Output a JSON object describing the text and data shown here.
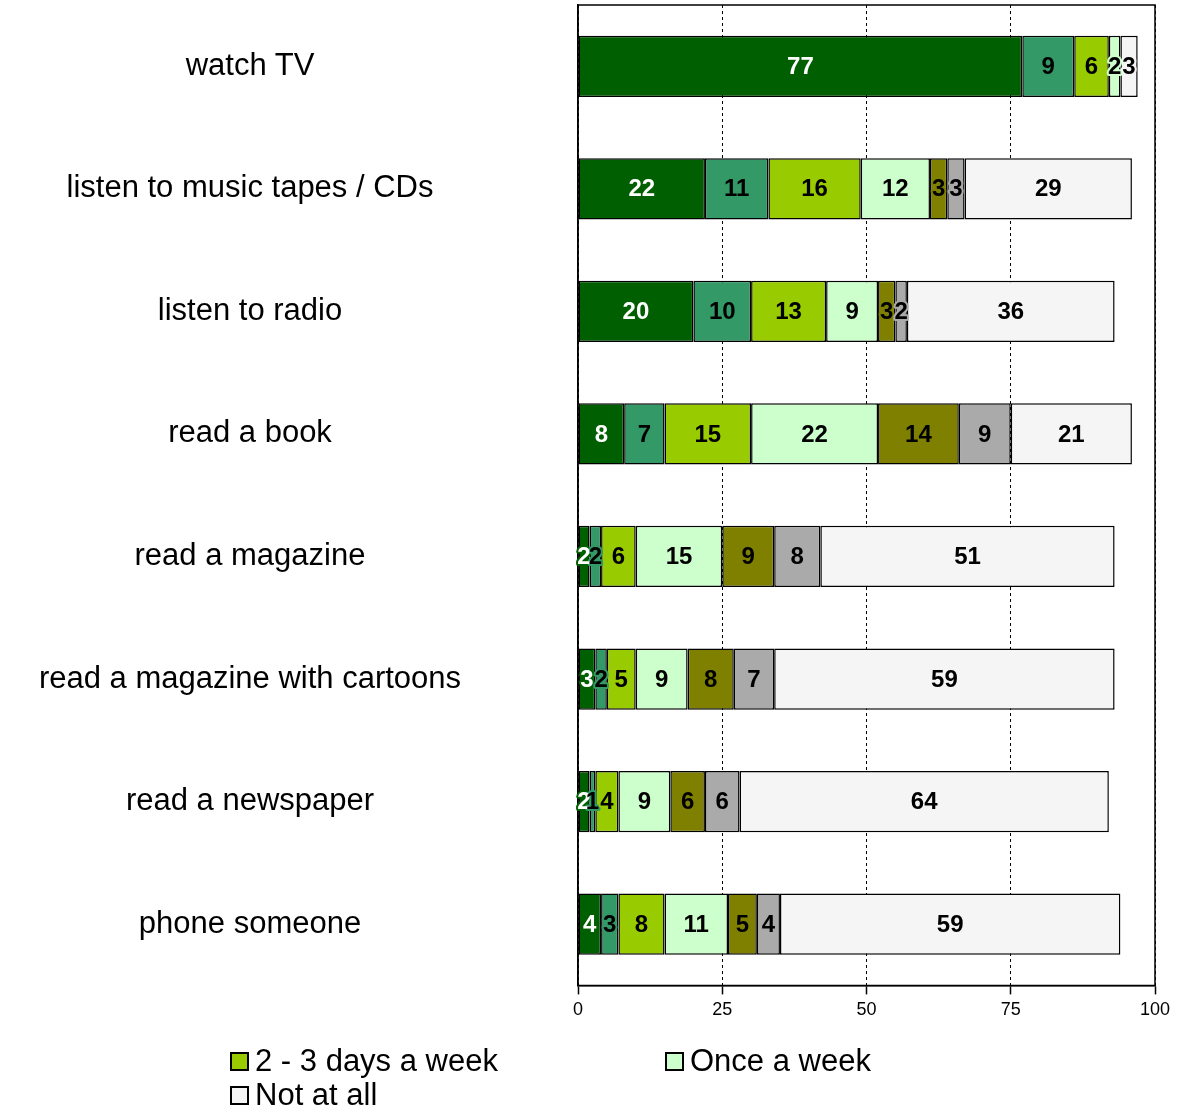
{
  "chart_data": {
    "type": "bar",
    "orientation": "horizontal",
    "stacked": true,
    "categories": [
      "watch TV",
      "listen to music tapes / CDs",
      "listen to radio",
      "read a book",
      "read a magazine",
      "read a magazine with cartoons",
      "read a newspaper",
      "phone someone"
    ],
    "series": [
      {
        "color": "#005f00",
        "values": [
          77,
          22,
          20,
          8,
          2,
          3,
          2,
          4
        ],
        "value_labels": [
          "77",
          "22",
          "20",
          "8",
          "2",
          "3",
          "2",
          "4"
        ]
      },
      {
        "color": "#339966",
        "values": [
          9,
          11,
          10,
          7,
          2,
          2,
          1,
          3
        ],
        "value_labels": [
          "9",
          "11",
          "10",
          "7",
          "2",
          "2",
          "1",
          "3"
        ]
      },
      {
        "name": "2 - 3 days a week",
        "color": "#99cc00",
        "values": [
          6,
          16,
          13,
          15,
          6,
          5,
          4,
          8
        ],
        "value_labels": [
          "6",
          "16",
          "13",
          "15",
          "6",
          "5",
          "4",
          "8"
        ]
      },
      {
        "name": "Once a week",
        "color": "#ccffcc",
        "values": [
          2,
          12,
          9,
          22,
          15,
          9,
          9,
          11
        ],
        "value_labels": [
          "2",
          "12",
          "9",
          "22",
          "15",
          "9",
          "9",
          "11"
        ]
      },
      {
        "color": "#808000",
        "values": [
          0,
          3,
          3,
          14,
          9,
          8,
          6,
          5
        ],
        "value_labels": [
          null,
          "3",
          "3",
          "14",
          "9",
          "8",
          "6",
          "5"
        ]
      },
      {
        "color": "#aaaaaa",
        "values": [
          0,
          3,
          2,
          9,
          8,
          7,
          6,
          4
        ],
        "value_labels": [
          null,
          "3",
          "2",
          "9",
          "8",
          "7",
          "6",
          "4"
        ]
      },
      {
        "name": "Not at all",
        "color": "#f5f5f5",
        "values": [
          3,
          29,
          36,
          21,
          51,
          59,
          64,
          59
        ],
        "value_labels": [
          "3",
          "29",
          "36",
          "21",
          "51",
          "59",
          "64",
          "59"
        ]
      }
    ],
    "xlim": [
      0,
      100
    ],
    "xticks": [
      0,
      25,
      50,
      75,
      100
    ],
    "grid": "x",
    "legend": "bottom"
  }
}
